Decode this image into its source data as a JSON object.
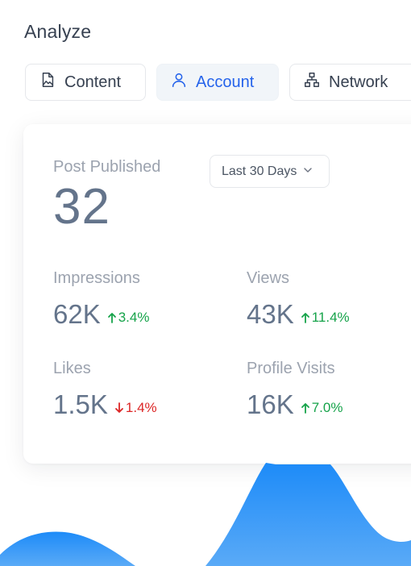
{
  "header": {
    "title": "Analyze"
  },
  "tabs": [
    {
      "label": "Content",
      "icon": "image-file-icon",
      "active": false
    },
    {
      "label": "Account",
      "icon": "user-icon",
      "active": true
    },
    {
      "label": "Network",
      "icon": "network-icon",
      "active": false
    }
  ],
  "card": {
    "posts_label": "Post Published",
    "posts_value": "32",
    "range_select": "Last 30 Days",
    "metrics": [
      {
        "label": "Impressions",
        "value": "62K",
        "change": "3.4%",
        "direction": "up"
      },
      {
        "label": "Views",
        "value": "43K",
        "change": "11.4%",
        "direction": "up"
      },
      {
        "label": "Likes",
        "value": "1.5K",
        "change": "1.4%",
        "direction": "down"
      },
      {
        "label": "Profile Visits",
        "value": "16K",
        "change": "7.0%",
        "direction": "up"
      }
    ]
  },
  "colors": {
    "accent": "#2563eb",
    "positive": "#16a34a",
    "negative": "#dc2626",
    "wave_top": "#1d8bf8",
    "wave_bottom": "#5aaaf7"
  }
}
